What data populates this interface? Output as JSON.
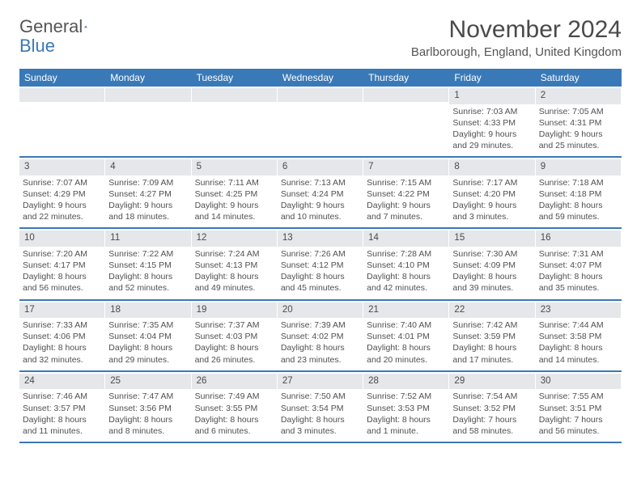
{
  "brand": {
    "part1": "General",
    "part2": "Blue"
  },
  "title": "November 2024",
  "location": "Barlborough, England, United Kingdom",
  "colors": {
    "header_bg": "#3a79b7",
    "header_text": "#ffffff",
    "numrow_bg": "#e5e7ea",
    "text": "#505050",
    "rule": "#3a79b7"
  },
  "typography": {
    "title_fontsize": 30,
    "location_fontsize": 15,
    "header_fontsize": 12,
    "cell_fontsize": 10.5
  },
  "dayNames": [
    "Sunday",
    "Monday",
    "Tuesday",
    "Wednesday",
    "Thursday",
    "Friday",
    "Saturday"
  ],
  "weeks": [
    [
      {
        "day": "",
        "sunrise": "",
        "sunset": "",
        "daylight": ""
      },
      {
        "day": "",
        "sunrise": "",
        "sunset": "",
        "daylight": ""
      },
      {
        "day": "",
        "sunrise": "",
        "sunset": "",
        "daylight": ""
      },
      {
        "day": "",
        "sunrise": "",
        "sunset": "",
        "daylight": ""
      },
      {
        "day": "",
        "sunrise": "",
        "sunset": "",
        "daylight": ""
      },
      {
        "day": "1",
        "sunrise": "Sunrise: 7:03 AM",
        "sunset": "Sunset: 4:33 PM",
        "daylight": "Daylight: 9 hours and 29 minutes."
      },
      {
        "day": "2",
        "sunrise": "Sunrise: 7:05 AM",
        "sunset": "Sunset: 4:31 PM",
        "daylight": "Daylight: 9 hours and 25 minutes."
      }
    ],
    [
      {
        "day": "3",
        "sunrise": "Sunrise: 7:07 AM",
        "sunset": "Sunset: 4:29 PM",
        "daylight": "Daylight: 9 hours and 22 minutes."
      },
      {
        "day": "4",
        "sunrise": "Sunrise: 7:09 AM",
        "sunset": "Sunset: 4:27 PM",
        "daylight": "Daylight: 9 hours and 18 minutes."
      },
      {
        "day": "5",
        "sunrise": "Sunrise: 7:11 AM",
        "sunset": "Sunset: 4:25 PM",
        "daylight": "Daylight: 9 hours and 14 minutes."
      },
      {
        "day": "6",
        "sunrise": "Sunrise: 7:13 AM",
        "sunset": "Sunset: 4:24 PM",
        "daylight": "Daylight: 9 hours and 10 minutes."
      },
      {
        "day": "7",
        "sunrise": "Sunrise: 7:15 AM",
        "sunset": "Sunset: 4:22 PM",
        "daylight": "Daylight: 9 hours and 7 minutes."
      },
      {
        "day": "8",
        "sunrise": "Sunrise: 7:17 AM",
        "sunset": "Sunset: 4:20 PM",
        "daylight": "Daylight: 9 hours and 3 minutes."
      },
      {
        "day": "9",
        "sunrise": "Sunrise: 7:18 AM",
        "sunset": "Sunset: 4:18 PM",
        "daylight": "Daylight: 8 hours and 59 minutes."
      }
    ],
    [
      {
        "day": "10",
        "sunrise": "Sunrise: 7:20 AM",
        "sunset": "Sunset: 4:17 PM",
        "daylight": "Daylight: 8 hours and 56 minutes."
      },
      {
        "day": "11",
        "sunrise": "Sunrise: 7:22 AM",
        "sunset": "Sunset: 4:15 PM",
        "daylight": "Daylight: 8 hours and 52 minutes."
      },
      {
        "day": "12",
        "sunrise": "Sunrise: 7:24 AM",
        "sunset": "Sunset: 4:13 PM",
        "daylight": "Daylight: 8 hours and 49 minutes."
      },
      {
        "day": "13",
        "sunrise": "Sunrise: 7:26 AM",
        "sunset": "Sunset: 4:12 PM",
        "daylight": "Daylight: 8 hours and 45 minutes."
      },
      {
        "day": "14",
        "sunrise": "Sunrise: 7:28 AM",
        "sunset": "Sunset: 4:10 PM",
        "daylight": "Daylight: 8 hours and 42 minutes."
      },
      {
        "day": "15",
        "sunrise": "Sunrise: 7:30 AM",
        "sunset": "Sunset: 4:09 PM",
        "daylight": "Daylight: 8 hours and 39 minutes."
      },
      {
        "day": "16",
        "sunrise": "Sunrise: 7:31 AM",
        "sunset": "Sunset: 4:07 PM",
        "daylight": "Daylight: 8 hours and 35 minutes."
      }
    ],
    [
      {
        "day": "17",
        "sunrise": "Sunrise: 7:33 AM",
        "sunset": "Sunset: 4:06 PM",
        "daylight": "Daylight: 8 hours and 32 minutes."
      },
      {
        "day": "18",
        "sunrise": "Sunrise: 7:35 AM",
        "sunset": "Sunset: 4:04 PM",
        "daylight": "Daylight: 8 hours and 29 minutes."
      },
      {
        "day": "19",
        "sunrise": "Sunrise: 7:37 AM",
        "sunset": "Sunset: 4:03 PM",
        "daylight": "Daylight: 8 hours and 26 minutes."
      },
      {
        "day": "20",
        "sunrise": "Sunrise: 7:39 AM",
        "sunset": "Sunset: 4:02 PM",
        "daylight": "Daylight: 8 hours and 23 minutes."
      },
      {
        "day": "21",
        "sunrise": "Sunrise: 7:40 AM",
        "sunset": "Sunset: 4:01 PM",
        "daylight": "Daylight: 8 hours and 20 minutes."
      },
      {
        "day": "22",
        "sunrise": "Sunrise: 7:42 AM",
        "sunset": "Sunset: 3:59 PM",
        "daylight": "Daylight: 8 hours and 17 minutes."
      },
      {
        "day": "23",
        "sunrise": "Sunrise: 7:44 AM",
        "sunset": "Sunset: 3:58 PM",
        "daylight": "Daylight: 8 hours and 14 minutes."
      }
    ],
    [
      {
        "day": "24",
        "sunrise": "Sunrise: 7:46 AM",
        "sunset": "Sunset: 3:57 PM",
        "daylight": "Daylight: 8 hours and 11 minutes."
      },
      {
        "day": "25",
        "sunrise": "Sunrise: 7:47 AM",
        "sunset": "Sunset: 3:56 PM",
        "daylight": "Daylight: 8 hours and 8 minutes."
      },
      {
        "day": "26",
        "sunrise": "Sunrise: 7:49 AM",
        "sunset": "Sunset: 3:55 PM",
        "daylight": "Daylight: 8 hours and 6 minutes."
      },
      {
        "day": "27",
        "sunrise": "Sunrise: 7:50 AM",
        "sunset": "Sunset: 3:54 PM",
        "daylight": "Daylight: 8 hours and 3 minutes."
      },
      {
        "day": "28",
        "sunrise": "Sunrise: 7:52 AM",
        "sunset": "Sunset: 3:53 PM",
        "daylight": "Daylight: 8 hours and 1 minute."
      },
      {
        "day": "29",
        "sunrise": "Sunrise: 7:54 AM",
        "sunset": "Sunset: 3:52 PM",
        "daylight": "Daylight: 7 hours and 58 minutes."
      },
      {
        "day": "30",
        "sunrise": "Sunrise: 7:55 AM",
        "sunset": "Sunset: 3:51 PM",
        "daylight": "Daylight: 7 hours and 56 minutes."
      }
    ]
  ]
}
